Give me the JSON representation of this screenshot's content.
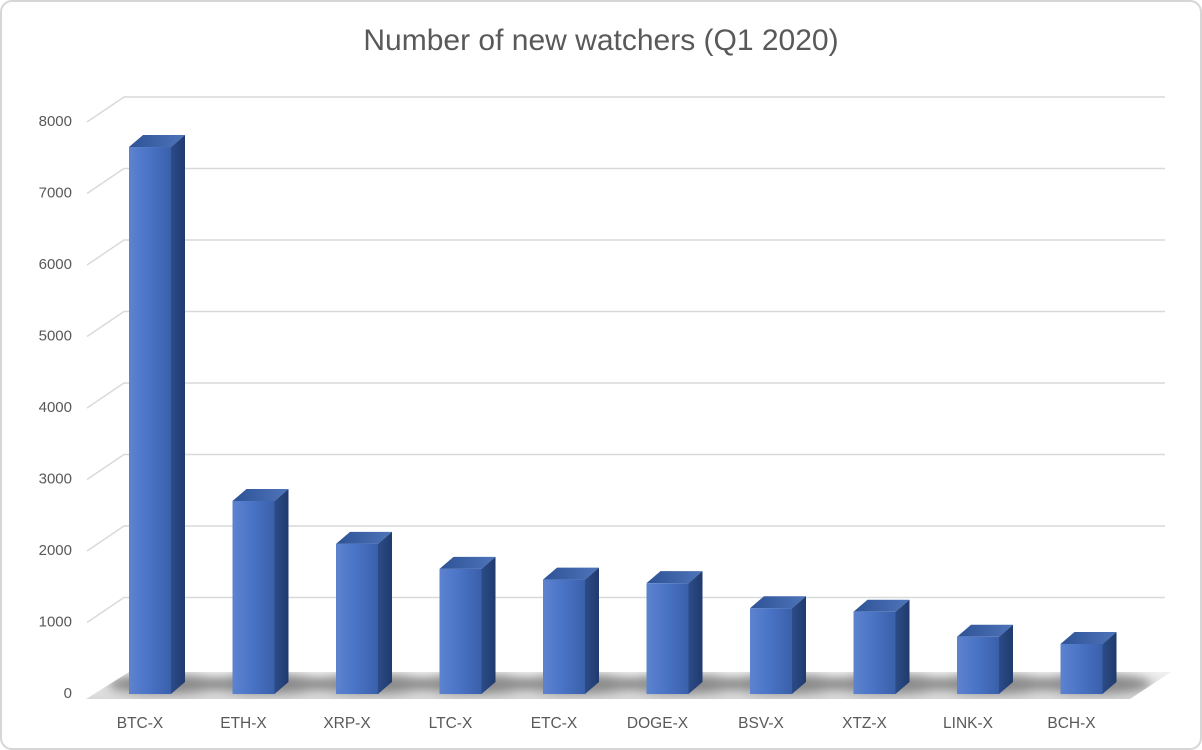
{
  "frame": {
    "background": "#ffffff",
    "border_color": "#d6d6d6"
  },
  "chart_data": {
    "type": "bar",
    "style": "3d-column",
    "title": "Number of new watchers (Q1 2020)",
    "categories": [
      "BTC-X",
      "ETH-X",
      "XRP-X",
      "LTC-X",
      "ETC-X",
      "DOGE-X",
      "BSV-X",
      "XTZ-X",
      "LINK-X",
      "BCH-X"
    ],
    "values": [
      7650,
      2700,
      2100,
      1750,
      1600,
      1550,
      1200,
      1150,
      800,
      700
    ],
    "xlabel": "",
    "ylabel": "",
    "ylim": [
      0,
      8000
    ],
    "ytick_step": 1000,
    "ytick_labels": [
      "0",
      "1000",
      "2000",
      "3000",
      "4000",
      "5000",
      "6000",
      "7000",
      "8000"
    ],
    "grid": true,
    "legend": false,
    "colors": {
      "bar_front_light": "#5d83cf",
      "bar_front_mid": "#4a74c6",
      "bar_front_dark": "#3a60aa",
      "bar_side_light": "#2c4c88",
      "bar_side_dark": "#203a6d",
      "bar_top_front": "#2e5295",
      "bar_top_back": "#4e74ba",
      "gridline": "#d9d9d9",
      "text": "#595959",
      "floor_light": "#f0f0f0",
      "floor_dark": "#d9d9d9",
      "shadow": "#3f3f3f",
      "background": "#ffffff"
    }
  }
}
